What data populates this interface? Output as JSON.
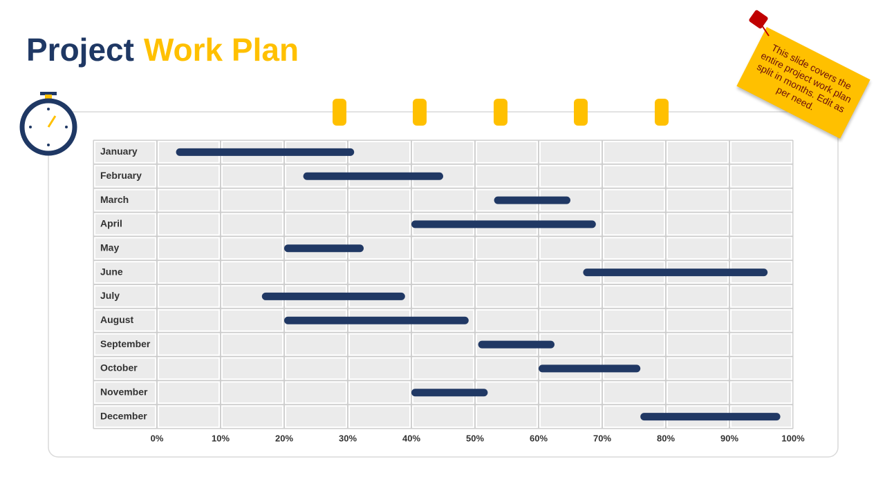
{
  "chart_data": {
    "type": "gantt",
    "title": [
      "Project",
      "Work Plan"
    ],
    "annotation": "This slide covers the entire project work plan split in months. Edit as per need.",
    "categories": [
      "January",
      "February",
      "March",
      "April",
      "May",
      "June",
      "July",
      "August",
      "September",
      "October",
      "November",
      "December"
    ],
    "start": [
      3,
      23,
      53,
      40,
      20,
      67,
      16.5,
      20,
      50.5,
      60,
      40,
      76
    ],
    "end": [
      31,
      45,
      65,
      69,
      32.5,
      96,
      39,
      49,
      62.5,
      76,
      52,
      98
    ],
    "color": "#203864",
    "xlim": [
      0,
      100
    ],
    "xticks": [
      {
        "value": 0,
        "label": "0%"
      },
      {
        "value": 10,
        "label": "10%"
      },
      {
        "value": 20,
        "label": "20%"
      },
      {
        "value": 30,
        "label": "30%"
      },
      {
        "value": 40,
        "label": "40%"
      },
      {
        "value": 50,
        "label": "50%"
      },
      {
        "value": 60,
        "label": "60%"
      },
      {
        "value": 70,
        "label": "70%"
      },
      {
        "value": 80,
        "label": "80%"
      },
      {
        "value": 90,
        "label": "90%"
      },
      {
        "value": 100,
        "label": "100%"
      }
    ],
    "grid": true
  }
}
